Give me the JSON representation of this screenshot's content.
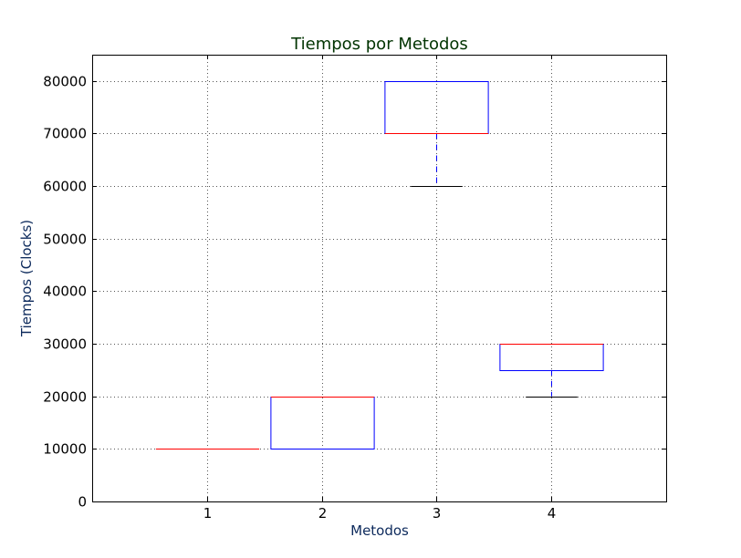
{
  "chart_data": {
    "type": "box",
    "title": "Tiempos por Metodos",
    "xlabel": "Metodos",
    "ylabel": "Tiempos (Clocks)",
    "categories": [
      "1",
      "2",
      "3",
      "4"
    ],
    "ylim": [
      0,
      85000
    ],
    "yticks": [
      0,
      10000,
      20000,
      30000,
      40000,
      50000,
      60000,
      70000,
      80000
    ],
    "grid": true,
    "boxes": [
      {
        "category": "1",
        "whisker_low": 10000,
        "q1": 10000,
        "median": 10000,
        "q3": 10000,
        "whisker_high": 10000
      },
      {
        "category": "2",
        "whisker_low": 10000,
        "q1": 10000,
        "median": 20000,
        "q3": 20000,
        "whisker_high": 20000
      },
      {
        "category": "3",
        "whisker_low": 60000,
        "q1": 70000,
        "median": 70000,
        "q3": 80000,
        "whisker_high": 80000
      },
      {
        "category": "4",
        "whisker_low": 20000,
        "q1": 25000,
        "median": 30000,
        "q3": 30000,
        "whisker_high": 30000
      }
    ],
    "colors": {
      "title": "#003300",
      "axis_labels": "#0d2a5c",
      "box": "#0000ff",
      "median": "#ff0000",
      "whisker": "#0000ff",
      "cap": "#000000"
    }
  }
}
